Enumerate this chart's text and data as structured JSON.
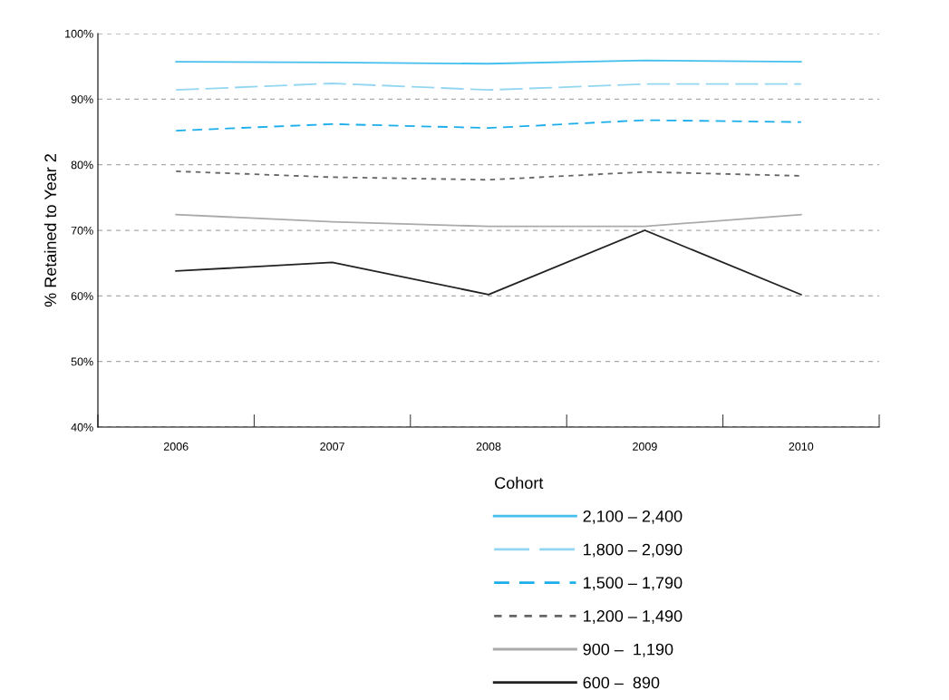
{
  "chart_data": {
    "type": "line",
    "ylabel": "% Retained to Year 2",
    "categories": [
      "2006",
      "2007",
      "2008",
      "2009",
      "2010"
    ],
    "series": [
      {
        "name": "2,100 – 2,400",
        "color": "#45c0ee",
        "line_style": "solid",
        "values": [
          95.7,
          95.6,
          95.4,
          95.9,
          95.7
        ]
      },
      {
        "name": "1,800 – 2,090",
        "color": "#93d6f2",
        "line_style": "longdash",
        "values": [
          91.4,
          92.4,
          91.4,
          92.3,
          92.3
        ]
      },
      {
        "name": "1,500 – 1,790",
        "color": "#1aaeea",
        "line_style": "dashed",
        "values": [
          85.2,
          86.2,
          85.6,
          86.8,
          86.5
        ]
      },
      {
        "name": "1,200 – 1,490",
        "color": "#666666",
        "line_style": "dotted",
        "values": [
          79.0,
          78.1,
          77.7,
          78.9,
          78.3
        ]
      },
      {
        "name": "900 –  1,190",
        "color": "#aaaaaa",
        "line_style": "solid",
        "values": [
          72.4,
          71.3,
          70.6,
          70.6,
          72.4
        ]
      },
      {
        "name": "600 –  890",
        "color": "#222222",
        "line_style": "solid",
        "values": [
          63.8,
          65.1,
          60.2,
          70.0,
          60.2
        ]
      }
    ],
    "ylim": [
      40,
      100
    ],
    "yticks": [
      {
        "value": 40,
        "label": "40%"
      },
      {
        "value": 50,
        "label": "50%"
      },
      {
        "value": 60,
        "label": "60%"
      },
      {
        "value": 70,
        "label": "70%"
      },
      {
        "value": 80,
        "label": "80%"
      },
      {
        "value": 90,
        "label": "90%"
      },
      {
        "value": 100,
        "label": "100%"
      }
    ],
    "grid": "y",
    "legend": "bottom",
    "legend_title": "Cohort",
    "marker": "none"
  }
}
